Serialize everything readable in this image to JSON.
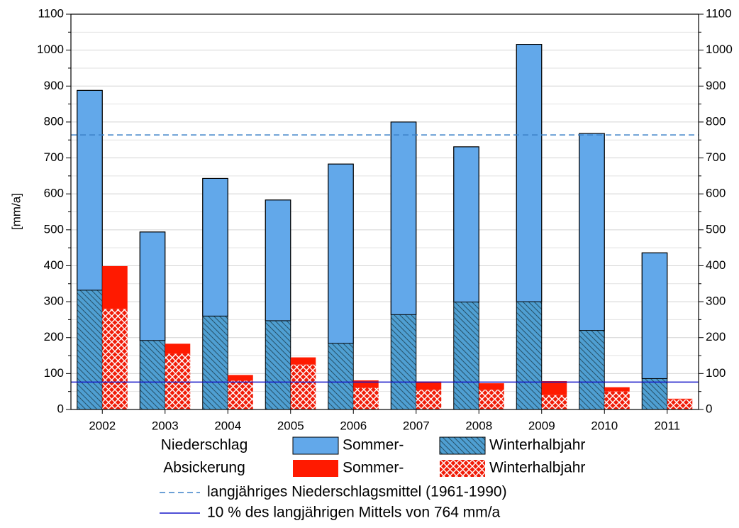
{
  "chart_data": {
    "type": "stacked_bar",
    "y_label": "[mm/a]",
    "categories": [
      "2002",
      "2003",
      "2004",
      "2005",
      "2006",
      "2007",
      "2008",
      "2009",
      "2010",
      "2011"
    ],
    "series": [
      {
        "name": "Winterhalbjahr",
        "group": "Niederschlag",
        "color": "#4f9fd2",
        "hatch": "diagonal",
        "values": [
          332,
          192,
          260,
          247,
          184,
          264,
          299,
          300,
          220,
          86
        ]
      },
      {
        "name": "Sommer-",
        "group": "Niederschlag",
        "color": "#62a8ea",
        "hatch": "none",
        "values": [
          556,
          302,
          383,
          336,
          499,
          536,
          432,
          716,
          548,
          350
        ]
      },
      {
        "name": "Winterhalbjahr",
        "group": "Absickerung",
        "color": "#f01c08",
        "hatch": "cross",
        "values": [
          280,
          155,
          80,
          125,
          60,
          55,
          55,
          40,
          50,
          28
        ]
      },
      {
        "name": "Sommer-",
        "group": "Absickerung",
        "color": "#ff1a00",
        "hatch": "none",
        "values": [
          119,
          28,
          16,
          20,
          21,
          23,
          18,
          39,
          12,
          2
        ]
      }
    ],
    "reference_lines": [
      {
        "label": "langjähriges Niederschlagsmittel (1961-1990)",
        "value": 764,
        "color": "#3b80c8",
        "style": "dashed"
      },
      {
        "label": "10 % des langjährigen Mittels von 764 mm/a",
        "value": 76.4,
        "color": "#1515c8",
        "style": "solid"
      }
    ],
    "ylim": [
      0,
      1100
    ],
    "yticks": [
      0,
      100,
      200,
      300,
      400,
      500,
      600,
      700,
      800,
      900,
      1000,
      1100
    ],
    "grid": true
  }
}
